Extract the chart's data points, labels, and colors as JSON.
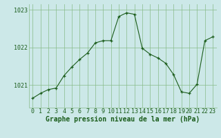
{
  "x": [
    0,
    1,
    2,
    3,
    4,
    5,
    6,
    7,
    8,
    9,
    10,
    11,
    12,
    13,
    14,
    15,
    16,
    17,
    18,
    19,
    20,
    21,
    22,
    23
  ],
  "y": [
    1020.65,
    1020.78,
    1020.88,
    1020.92,
    1021.25,
    1021.48,
    1021.68,
    1021.85,
    1022.12,
    1022.18,
    1022.18,
    1022.82,
    1022.92,
    1022.88,
    1021.98,
    1021.82,
    1021.72,
    1021.58,
    1021.28,
    1020.82,
    1020.78,
    1021.02,
    1022.18,
    1022.28
  ],
  "line_color": "#1a5c1a",
  "marker": "+",
  "marker_color": "#1a5c1a",
  "bg_color": "#cce8e8",
  "grid_color": "#88bb88",
  "xlabel": "Graphe pression niveau de la mer (hPa)",
  "xlabel_color": "#1a5c1a",
  "tick_color": "#1a5c1a",
  "ylim": [
    1020.4,
    1023.15
  ],
  "yticks": [
    1021,
    1022,
    1023
  ],
  "xticks": [
    0,
    1,
    2,
    3,
    4,
    5,
    6,
    7,
    8,
    9,
    10,
    11,
    12,
    13,
    14,
    15,
    16,
    17,
    18,
    19,
    20,
    21,
    22,
    23
  ],
  "label_fontsize": 7.0,
  "tick_fontsize": 6.0
}
